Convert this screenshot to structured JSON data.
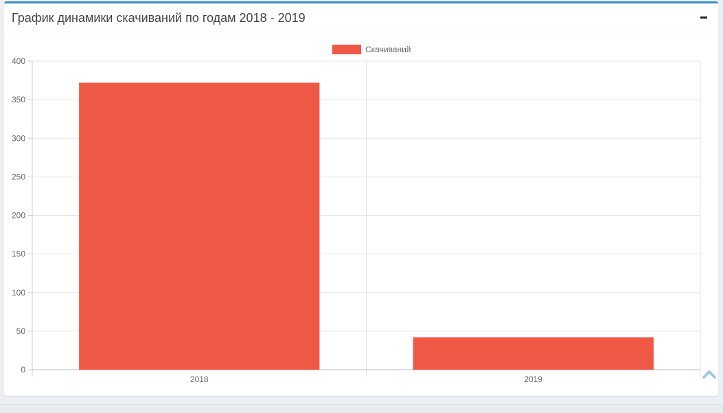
{
  "panel": {
    "title": "График динамики скачиваний по годам 2018 - 2019",
    "collapse_label": "−"
  },
  "icons": {
    "collapse": "minus-icon",
    "scroll_top": "chevron-up-icon"
  },
  "colors": {
    "accent": "#3c8dbc",
    "bar": "#f05846",
    "scroll_icon": "#9fc8e0"
  },
  "chart_data": {
    "type": "bar",
    "categories": [
      "2018",
      "2019"
    ],
    "series": [
      {
        "name": "Скачиваний",
        "values": [
          372,
          42
        ]
      }
    ],
    "yticks": [
      0,
      50,
      100,
      150,
      200,
      250,
      300,
      350,
      400
    ],
    "ylim": [
      0,
      400
    ],
    "legend_position": "top",
    "grid": true
  }
}
